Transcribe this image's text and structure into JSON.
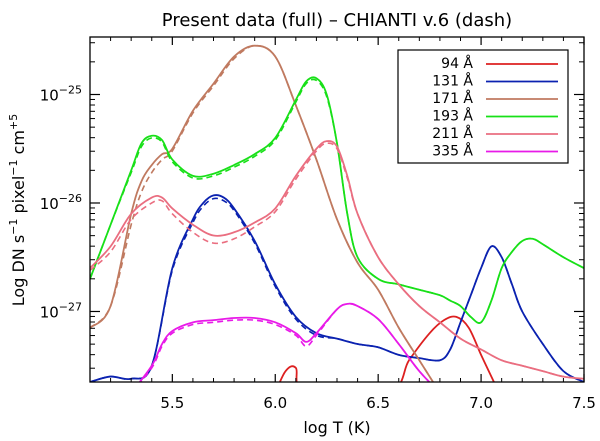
{
  "chart_data": {
    "type": "line",
    "title": "Present data (full) – CHIANTI v.6 (dash)",
    "xlabel": "log T (K)",
    "ylabel_main": "Log DN s",
    "ylabel_sup1": "−1",
    "ylabel_mid": " pixel",
    "ylabel_sup2": "−1",
    "ylabel_mid2": " cm",
    "ylabel_sup3": "+5",
    "xlim": [
      5.1,
      7.5
    ],
    "ylim_log10": [
      -27.65,
      -24.47
    ],
    "x_ticks": [
      5.5,
      6.0,
      6.5,
      7.0,
      7.5
    ],
    "x_tick_labels": [
      "5.5",
      "6.0",
      "6.5",
      "7.0",
      "7.5"
    ],
    "y_ticks_log10": [
      -27,
      -26,
      -25
    ],
    "y_tick_labels": [
      {
        "base": "10",
        "exp": "−27"
      },
      {
        "base": "10",
        "exp": "−26"
      },
      {
        "base": "10",
        "exp": "−25"
      }
    ],
    "legend_position": "top-right",
    "series": [
      {
        "name": "94 Å",
        "color": "#dd2020",
        "x": [
          6.0,
          6.05,
          6.1,
          6.15,
          6.55,
          6.65,
          6.75,
          6.82,
          6.88,
          6.94,
          7.0,
          7.05,
          7.1
        ],
        "y": [
          -27.75,
          -27.55,
          -27.52,
          -27.75,
          -27.75,
          -27.45,
          -27.2,
          -27.08,
          -27.05,
          -27.15,
          -27.4,
          -27.6,
          -27.8
        ],
        "y_dash": null
      },
      {
        "name": "131 Å",
        "color": "#0b22b0",
        "x": [
          5.1,
          5.2,
          5.3,
          5.4,
          5.5,
          5.6,
          5.65,
          5.7,
          5.75,
          5.8,
          5.9,
          6.0,
          6.1,
          6.2,
          6.3,
          6.4,
          6.5,
          6.6,
          6.7,
          6.8,
          6.85,
          6.9,
          6.95,
          7.0,
          7.05,
          7.1,
          7.15,
          7.2,
          7.3,
          7.4,
          7.5
        ],
        "y": [
          -27.65,
          -27.6,
          -27.62,
          -27.5,
          -26.6,
          -26.15,
          -26.0,
          -25.93,
          -25.95,
          -26.05,
          -26.35,
          -26.75,
          -27.05,
          -27.2,
          -27.25,
          -27.3,
          -27.33,
          -27.4,
          -27.43,
          -27.45,
          -27.35,
          -27.1,
          -26.85,
          -26.6,
          -26.4,
          -26.5,
          -26.75,
          -27.0,
          -27.3,
          -27.55,
          -27.65
        ],
        "y_dash": [
          -27.65,
          -27.6,
          -27.62,
          -27.5,
          -26.62,
          -26.18,
          -26.03,
          -25.96,
          -25.98,
          -26.07,
          -26.37,
          -26.77,
          -27.07,
          -27.22,
          -27.25,
          -27.3,
          -27.33,
          -27.4,
          -27.43,
          -27.45,
          -27.35,
          -27.1,
          -26.85,
          -26.6,
          -26.4,
          -26.5,
          -26.75,
          -27.0,
          -27.3,
          -27.55,
          -27.65
        ]
      },
      {
        "name": "171 Å",
        "color": "#c07a60",
        "x": [
          5.1,
          5.2,
          5.3,
          5.35,
          5.4,
          5.45,
          5.5,
          5.6,
          5.7,
          5.8,
          5.9,
          6.0,
          6.1,
          6.2,
          6.3,
          6.4,
          6.5,
          6.6,
          6.7,
          6.75,
          6.8
        ],
        "y": [
          -27.15,
          -26.95,
          -26.1,
          -25.8,
          -25.65,
          -25.55,
          -25.5,
          -25.15,
          -24.9,
          -24.65,
          -24.55,
          -24.65,
          -25.1,
          -25.6,
          -26.15,
          -26.55,
          -26.8,
          -27.15,
          -27.45,
          -27.6,
          -27.75
        ],
        "y_dash": [
          -27.15,
          -26.95,
          -26.2,
          -25.9,
          -25.72,
          -25.6,
          -25.52,
          -25.17,
          -24.92,
          -24.67,
          -24.55,
          -24.65,
          -25.1,
          -25.6,
          -26.15,
          -26.55,
          -26.8,
          -27.15,
          -27.45,
          -27.6,
          -27.75
        ]
      },
      {
        "name": "193 Å",
        "color": "#18e018",
        "x": [
          5.1,
          5.2,
          5.3,
          5.35,
          5.4,
          5.45,
          5.5,
          5.6,
          5.7,
          5.8,
          5.9,
          6.0,
          6.1,
          6.15,
          6.2,
          6.25,
          6.3,
          6.35,
          6.4,
          6.5,
          6.6,
          6.7,
          6.8,
          6.85,
          6.9,
          6.95,
          7.0,
          7.05,
          7.1,
          7.15,
          7.2,
          7.25,
          7.3,
          7.4,
          7.5
        ],
        "y": [
          -26.7,
          -26.2,
          -25.7,
          -25.45,
          -25.38,
          -25.42,
          -25.6,
          -25.75,
          -25.73,
          -25.65,
          -25.55,
          -25.4,
          -25.05,
          -24.88,
          -24.85,
          -25.0,
          -25.45,
          -26.1,
          -26.5,
          -26.7,
          -26.75,
          -26.8,
          -26.85,
          -26.9,
          -26.95,
          -27.05,
          -27.1,
          -26.9,
          -26.6,
          -26.45,
          -26.35,
          -26.33,
          -26.38,
          -26.5,
          -26.6
        ],
        "y_dash": [
          -26.7,
          -26.2,
          -25.72,
          -25.48,
          -25.4,
          -25.44,
          -25.62,
          -25.77,
          -25.75,
          -25.67,
          -25.57,
          -25.42,
          -25.07,
          -24.9,
          -24.87,
          -25.02,
          -25.45,
          -26.1,
          -26.5,
          -26.7,
          -26.75,
          -26.8,
          -26.85,
          -26.9,
          -26.95,
          -27.05,
          -27.1,
          -26.9,
          -26.6,
          -26.45,
          -26.35,
          -26.33,
          -26.38,
          -26.5,
          -26.6
        ]
      },
      {
        "name": "211 Å",
        "color": "#ea6e80",
        "x": [
          5.1,
          5.2,
          5.3,
          5.4,
          5.45,
          5.5,
          5.6,
          5.7,
          5.8,
          5.9,
          6.0,
          6.1,
          6.2,
          6.25,
          6.3,
          6.35,
          6.4,
          6.5,
          6.6,
          6.7,
          6.8,
          6.9,
          7.0,
          7.1,
          7.2,
          7.3,
          7.4,
          7.5
        ],
        "y": [
          -26.6,
          -26.4,
          -26.1,
          -25.95,
          -25.95,
          -26.05,
          -26.2,
          -26.3,
          -26.27,
          -26.18,
          -26.05,
          -25.75,
          -25.5,
          -25.43,
          -25.48,
          -25.75,
          -26.1,
          -26.5,
          -26.75,
          -26.95,
          -27.1,
          -27.25,
          -27.35,
          -27.45,
          -27.5,
          -27.55,
          -27.6,
          -27.62
        ],
        "y_dash": [
          -26.62,
          -26.45,
          -26.15,
          -26.0,
          -25.98,
          -26.1,
          -26.27,
          -26.37,
          -26.33,
          -26.22,
          -26.08,
          -25.78,
          -25.52,
          -25.45,
          -25.5,
          -25.77,
          -26.1,
          -26.5,
          -26.75,
          -26.95,
          -27.1,
          -27.25,
          -27.35,
          -27.45,
          -27.5,
          -27.55,
          -27.6,
          -27.62
        ]
      },
      {
        "name": "335 Å",
        "color": "#e81ae8",
        "x": [
          5.3,
          5.4,
          5.45,
          5.5,
          5.6,
          5.7,
          5.8,
          5.9,
          6.0,
          6.1,
          6.15,
          6.2,
          6.3,
          6.35,
          6.4,
          6.5,
          6.6,
          6.7,
          6.8
        ],
        "y": [
          -27.75,
          -27.5,
          -27.3,
          -27.18,
          -27.1,
          -27.08,
          -27.06,
          -27.06,
          -27.1,
          -27.2,
          -27.28,
          -27.2,
          -26.98,
          -26.93,
          -26.95,
          -27.07,
          -27.3,
          -27.55,
          -27.75
        ],
        "y_dash": [
          -27.75,
          -27.52,
          -27.32,
          -27.2,
          -27.12,
          -27.1,
          -27.08,
          -27.08,
          -27.12,
          -27.22,
          -27.32,
          -27.22,
          -26.98,
          -26.93,
          -26.95,
          -27.07,
          -27.3,
          -27.55,
          -27.75
        ]
      }
    ]
  }
}
